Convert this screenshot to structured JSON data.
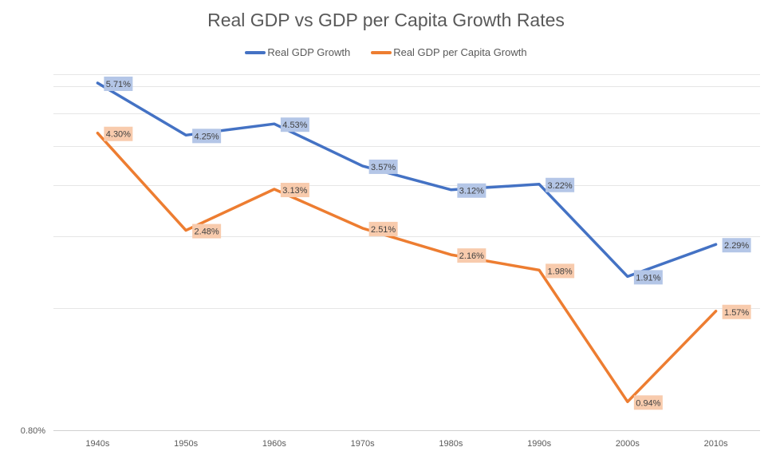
{
  "chart_data": {
    "type": "line",
    "title": "Real GDP vs GDP per Capita Growth Rates",
    "xlabel": "",
    "ylabel": "",
    "categories": [
      "1940s",
      "1950s",
      "1960s",
      "1970s",
      "1980s",
      "1990s",
      "2000s",
      "2010s"
    ],
    "series": [
      {
        "name": "Real GDP Growth",
        "color": "#4472c4",
        "label_bg": "#b4c6e7",
        "values": [
          5.71,
          4.25,
          4.53,
          3.57,
          3.12,
          3.22,
          1.91,
          2.29
        ],
        "labels": [
          "5.71%",
          "4.25%",
          "4.53%",
          "3.57%",
          "3.12%",
          "3.22%",
          "1.91%",
          "2.29%"
        ]
      },
      {
        "name": "Real GDP per Capita Growth",
        "color": "#ed7d31",
        "label_bg": "#f8cbad",
        "values": [
          4.3,
          2.48,
          3.13,
          2.51,
          2.16,
          1.98,
          0.94,
          1.57
        ],
        "labels": [
          "4.30%",
          "2.48%",
          "3.13%",
          "2.51%",
          "2.16%",
          "1.98%",
          "0.94%",
          "1.57%"
        ]
      }
    ],
    "y_scale": "log",
    "ylim": [
      0.8,
      6.0
    ],
    "y_tick_labels": [
      "0.80%"
    ],
    "gridlines": [
      1.6,
      2.4,
      3.2,
      4.0,
      4.8,
      5.6,
      6.0
    ],
    "grid": true,
    "legend": "top"
  }
}
